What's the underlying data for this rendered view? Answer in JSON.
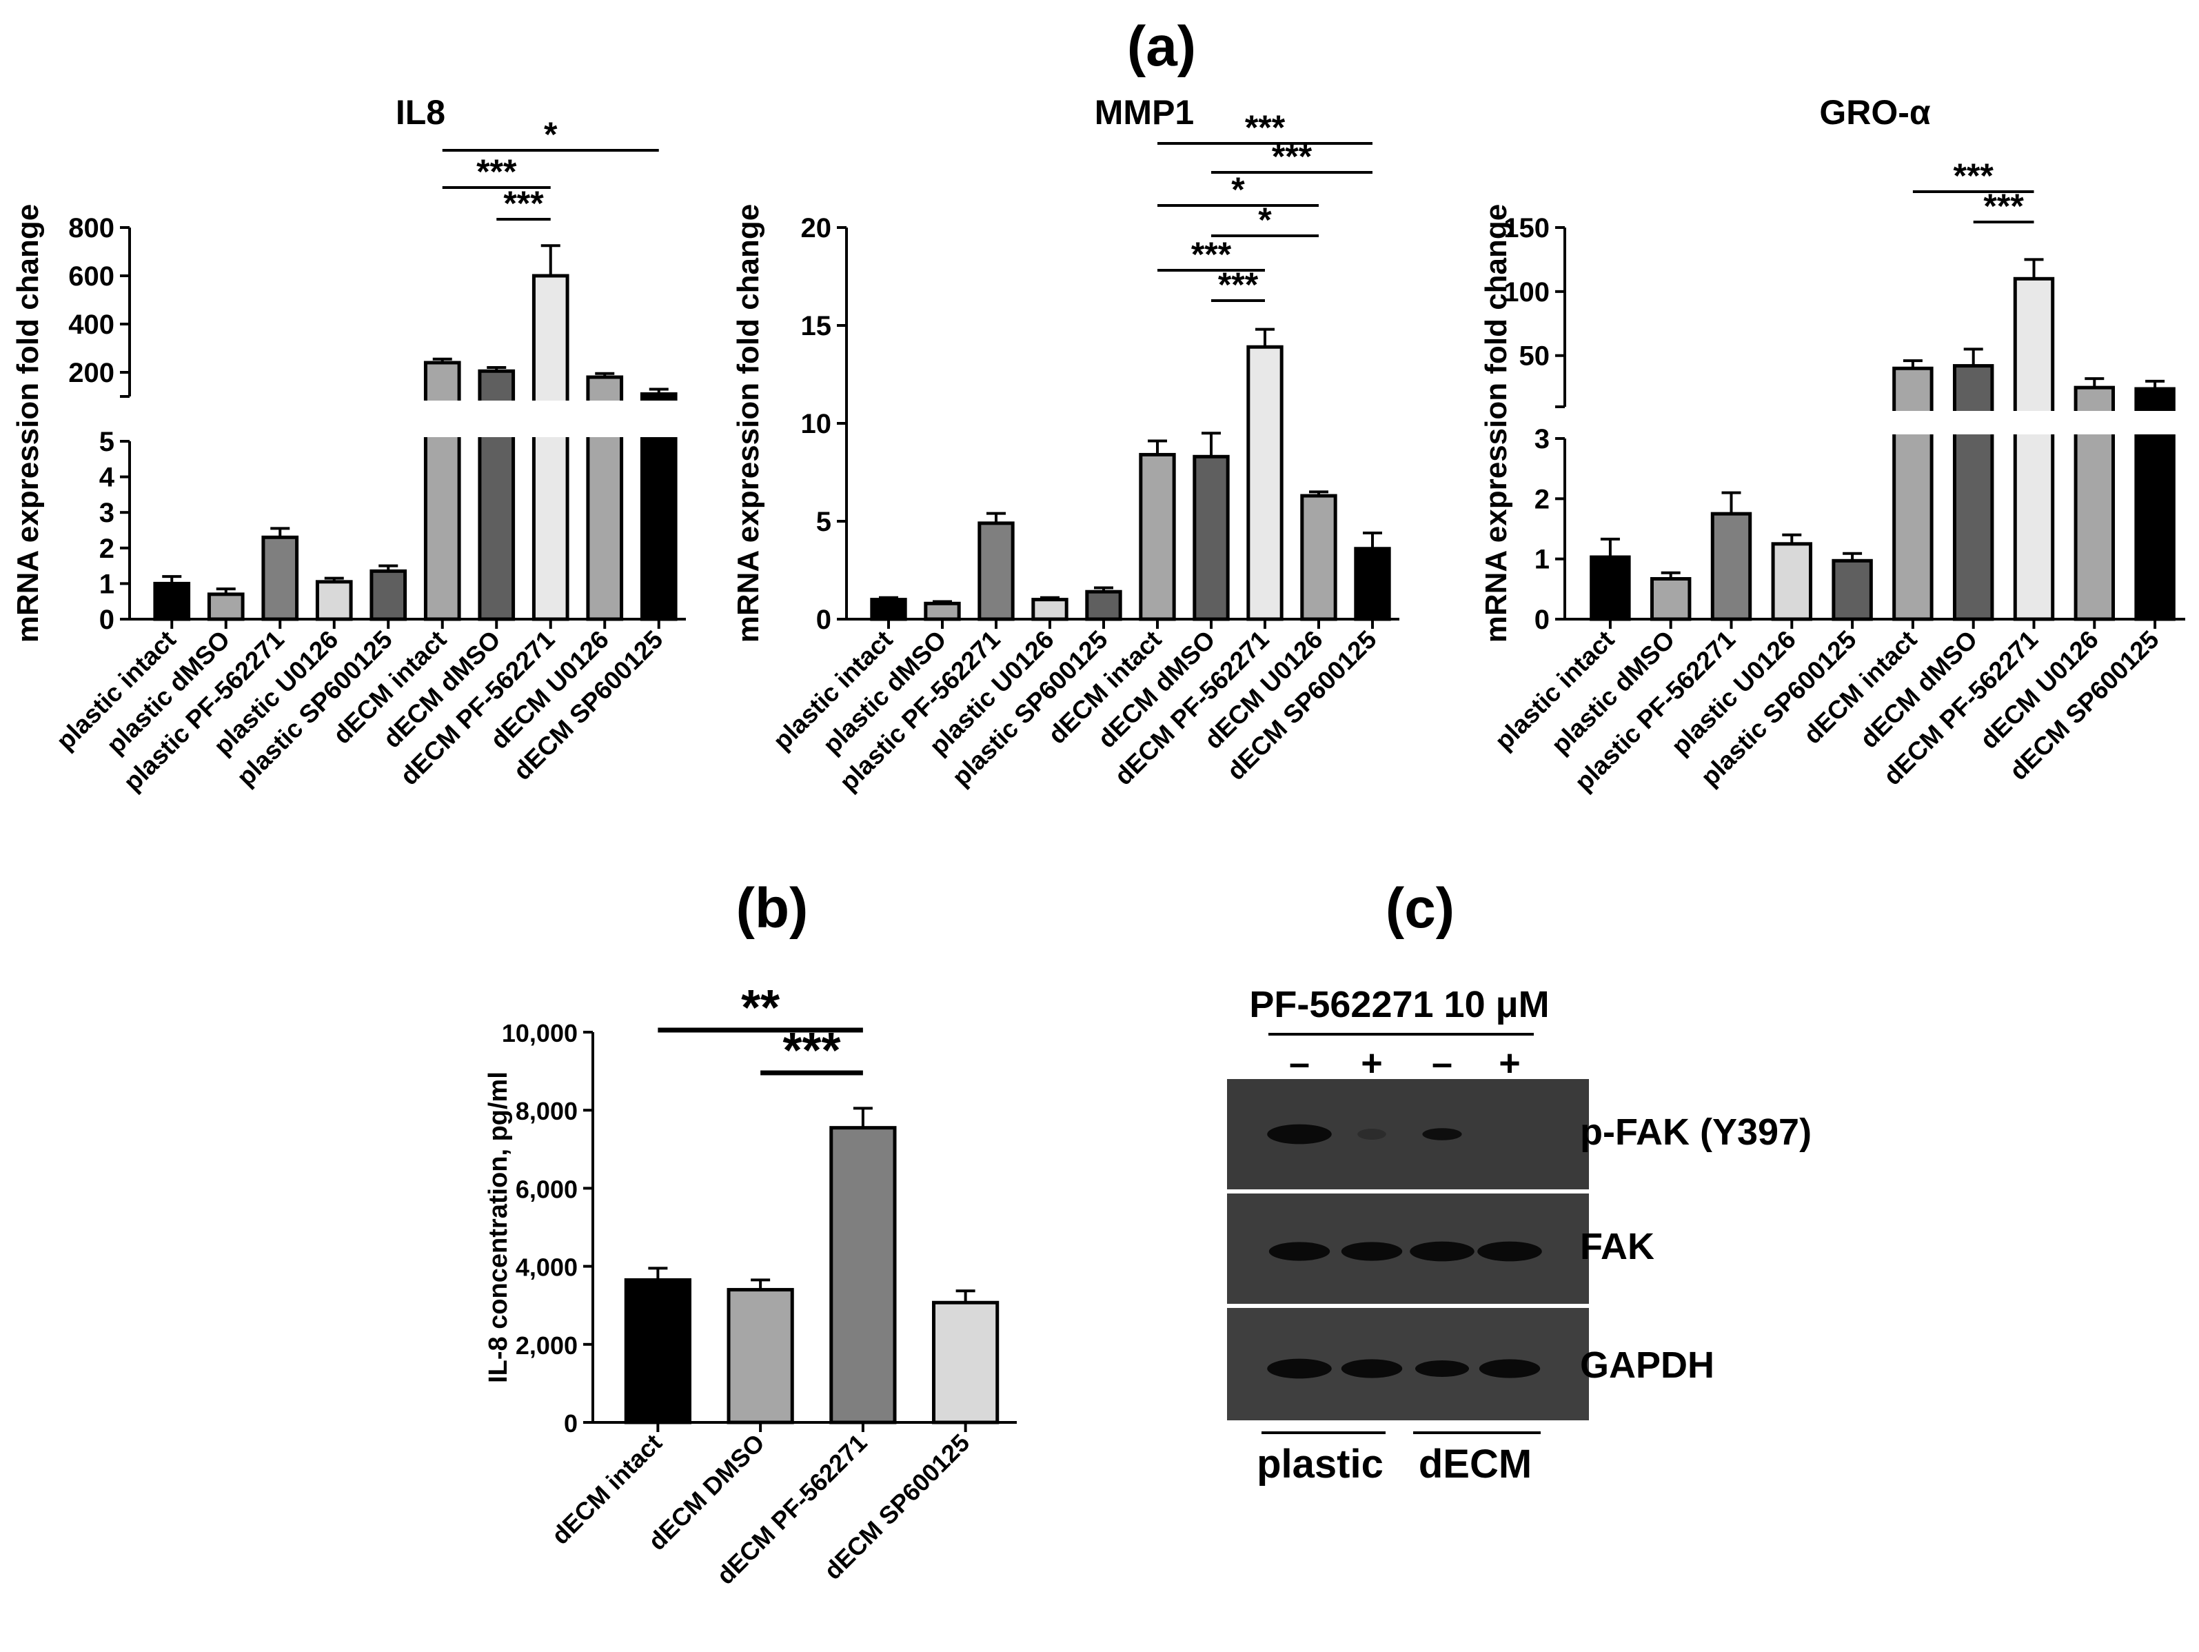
{
  "figure": {
    "labels": {
      "a": "(a)",
      "b": "(b)",
      "c": "(c)"
    }
  },
  "chart_data": [
    {
      "id": "il8",
      "type": "bar",
      "title": "IL8",
      "ylabel": "mRNA expression fold change",
      "broken_axis": true,
      "lower_range": [
        0,
        5
      ],
      "upper_range": [
        100,
        800
      ],
      "lower_ticks": [
        "0",
        "1",
        "2",
        "3",
        "4",
        "5"
      ],
      "upper_ticks": [
        "200",
        "400",
        "600",
        "800"
      ],
      "categories": [
        "plastic intact",
        "plastic dMSO",
        "plastic PF-562271",
        "plastic U0126",
        "plastic SP600125",
        "dECM intact",
        "dECM dMSO",
        "dECM PF-562271",
        "dECM U0126",
        "dECM SP600125"
      ],
      "values": [
        1.0,
        0.7,
        2.3,
        1.05,
        1.35,
        240,
        205,
        600,
        180,
        110
      ],
      "errors": [
        0.2,
        0.15,
        0.25,
        0.1,
        0.15,
        15,
        15,
        125,
        15,
        20
      ],
      "colors": [
        "#000000",
        "#a6a6a6",
        "#7f7f7f",
        "#d9d9d9",
        "#5f5f5f",
        "#a6a6a6",
        "#5f5f5f",
        "#e8e8e8",
        "#a6a6a6",
        "#000000"
      ],
      "significance": [
        {
          "from": 5,
          "to": 9,
          "label": "*"
        },
        {
          "from": 5,
          "to": 7,
          "label": "***"
        },
        {
          "from": 6,
          "to": 7,
          "label": "***"
        }
      ]
    },
    {
      "id": "mmp1",
      "type": "bar",
      "title": "MMP1",
      "ylabel": "mRNA expression fold change",
      "broken_axis": false,
      "ylim": [
        0,
        20
      ],
      "yticks": [
        "0",
        "5",
        "10",
        "15",
        "20"
      ],
      "categories": [
        "plastic intact",
        "plastic dMSO",
        "plastic PF-562271",
        "plastic U0126",
        "plastic SP600125",
        "dECM intact",
        "dECM dMSO",
        "dECM PF-562271",
        "dECM U0126",
        "dECM SP600125"
      ],
      "values": [
        1.0,
        0.8,
        4.9,
        1.0,
        1.4,
        8.4,
        8.3,
        13.9,
        6.3,
        3.6
      ],
      "errors": [
        0.1,
        0.1,
        0.5,
        0.1,
        0.2,
        0.7,
        1.2,
        0.9,
        0.2,
        0.8
      ],
      "colors": [
        "#000000",
        "#a6a6a6",
        "#7f7f7f",
        "#d9d9d9",
        "#5f5f5f",
        "#a6a6a6",
        "#5f5f5f",
        "#e8e8e8",
        "#a6a6a6",
        "#000000"
      ],
      "significance": [
        {
          "from": 5,
          "to": 9,
          "label": "***"
        },
        {
          "from": 6,
          "to": 9,
          "label": "***"
        },
        {
          "from": 5,
          "to": 8,
          "label": "*"
        },
        {
          "from": 6,
          "to": 8,
          "label": "*"
        },
        {
          "from": 5,
          "to": 7,
          "label": "***"
        },
        {
          "from": 6,
          "to": 7,
          "label": "***"
        }
      ]
    },
    {
      "id": "gro",
      "type": "bar",
      "title": "GRO-α",
      "ylabel": "mRNA expression fold change",
      "broken_axis": true,
      "lower_range": [
        0,
        3
      ],
      "upper_range": [
        10,
        150
      ],
      "lower_ticks": [
        "0",
        "1",
        "2",
        "3"
      ],
      "upper_ticks": [
        "50",
        "100",
        "150"
      ],
      "categories": [
        "plastic intact",
        "plastic dMSO",
        "plastic PF-562271",
        "plastic U0126",
        "plastic SP600125",
        "dECM intact",
        "dECM dMSO",
        "dECM PF-562271",
        "dECM U0126",
        "dECM SP600125"
      ],
      "values": [
        1.03,
        0.67,
        1.75,
        1.25,
        0.97,
        40,
        42,
        110,
        25,
        24
      ],
      "errors": [
        0.3,
        0.1,
        0.35,
        0.15,
        0.12,
        6,
        13,
        15,
        7,
        6
      ],
      "colors": [
        "#000000",
        "#a6a6a6",
        "#7f7f7f",
        "#d9d9d9",
        "#5f5f5f",
        "#a6a6a6",
        "#5f5f5f",
        "#e8e8e8",
        "#a6a6a6",
        "#000000"
      ],
      "significance": [
        {
          "from": 5,
          "to": 7,
          "label": "***"
        },
        {
          "from": 6,
          "to": 7,
          "label": "***"
        }
      ]
    },
    {
      "id": "elisa",
      "type": "bar",
      "ylabel": "IL-8 concentration, pg/ml",
      "ylim": [
        0,
        10000
      ],
      "yticks": [
        "0",
        "2,000",
        "4,000",
        "6,000",
        "8,000",
        "10,000"
      ],
      "categories": [
        "dECM intact",
        "dECM DMSO",
        "dECM PF-562271",
        "dECM SP600125"
      ],
      "values": [
        3650,
        3400,
        7550,
        3070
      ],
      "errors": [
        300,
        250,
        500,
        300
      ],
      "colors": [
        "#000000",
        "#a6a6a6",
        "#7f7f7f",
        "#d9d9d9"
      ],
      "significance": [
        {
          "from": 0,
          "to": 2,
          "label": "**"
        },
        {
          "from": 1,
          "to": 2,
          "label": "***"
        }
      ]
    }
  ],
  "blot": {
    "treatment_label": "PF-562271 10 μM",
    "lanes": [
      "–",
      "+",
      "–",
      "+"
    ],
    "rows": [
      "p-FAK (Y397)",
      "FAK",
      "GAPDH"
    ],
    "groups": [
      "plastic",
      "dECM"
    ],
    "band_intensity": [
      [
        0.9,
        0.15,
        0.55,
        0.0
      ],
      [
        0.85,
        0.85,
        0.9,
        0.9
      ],
      [
        0.9,
        0.85,
        0.75,
        0.85
      ]
    ]
  }
}
